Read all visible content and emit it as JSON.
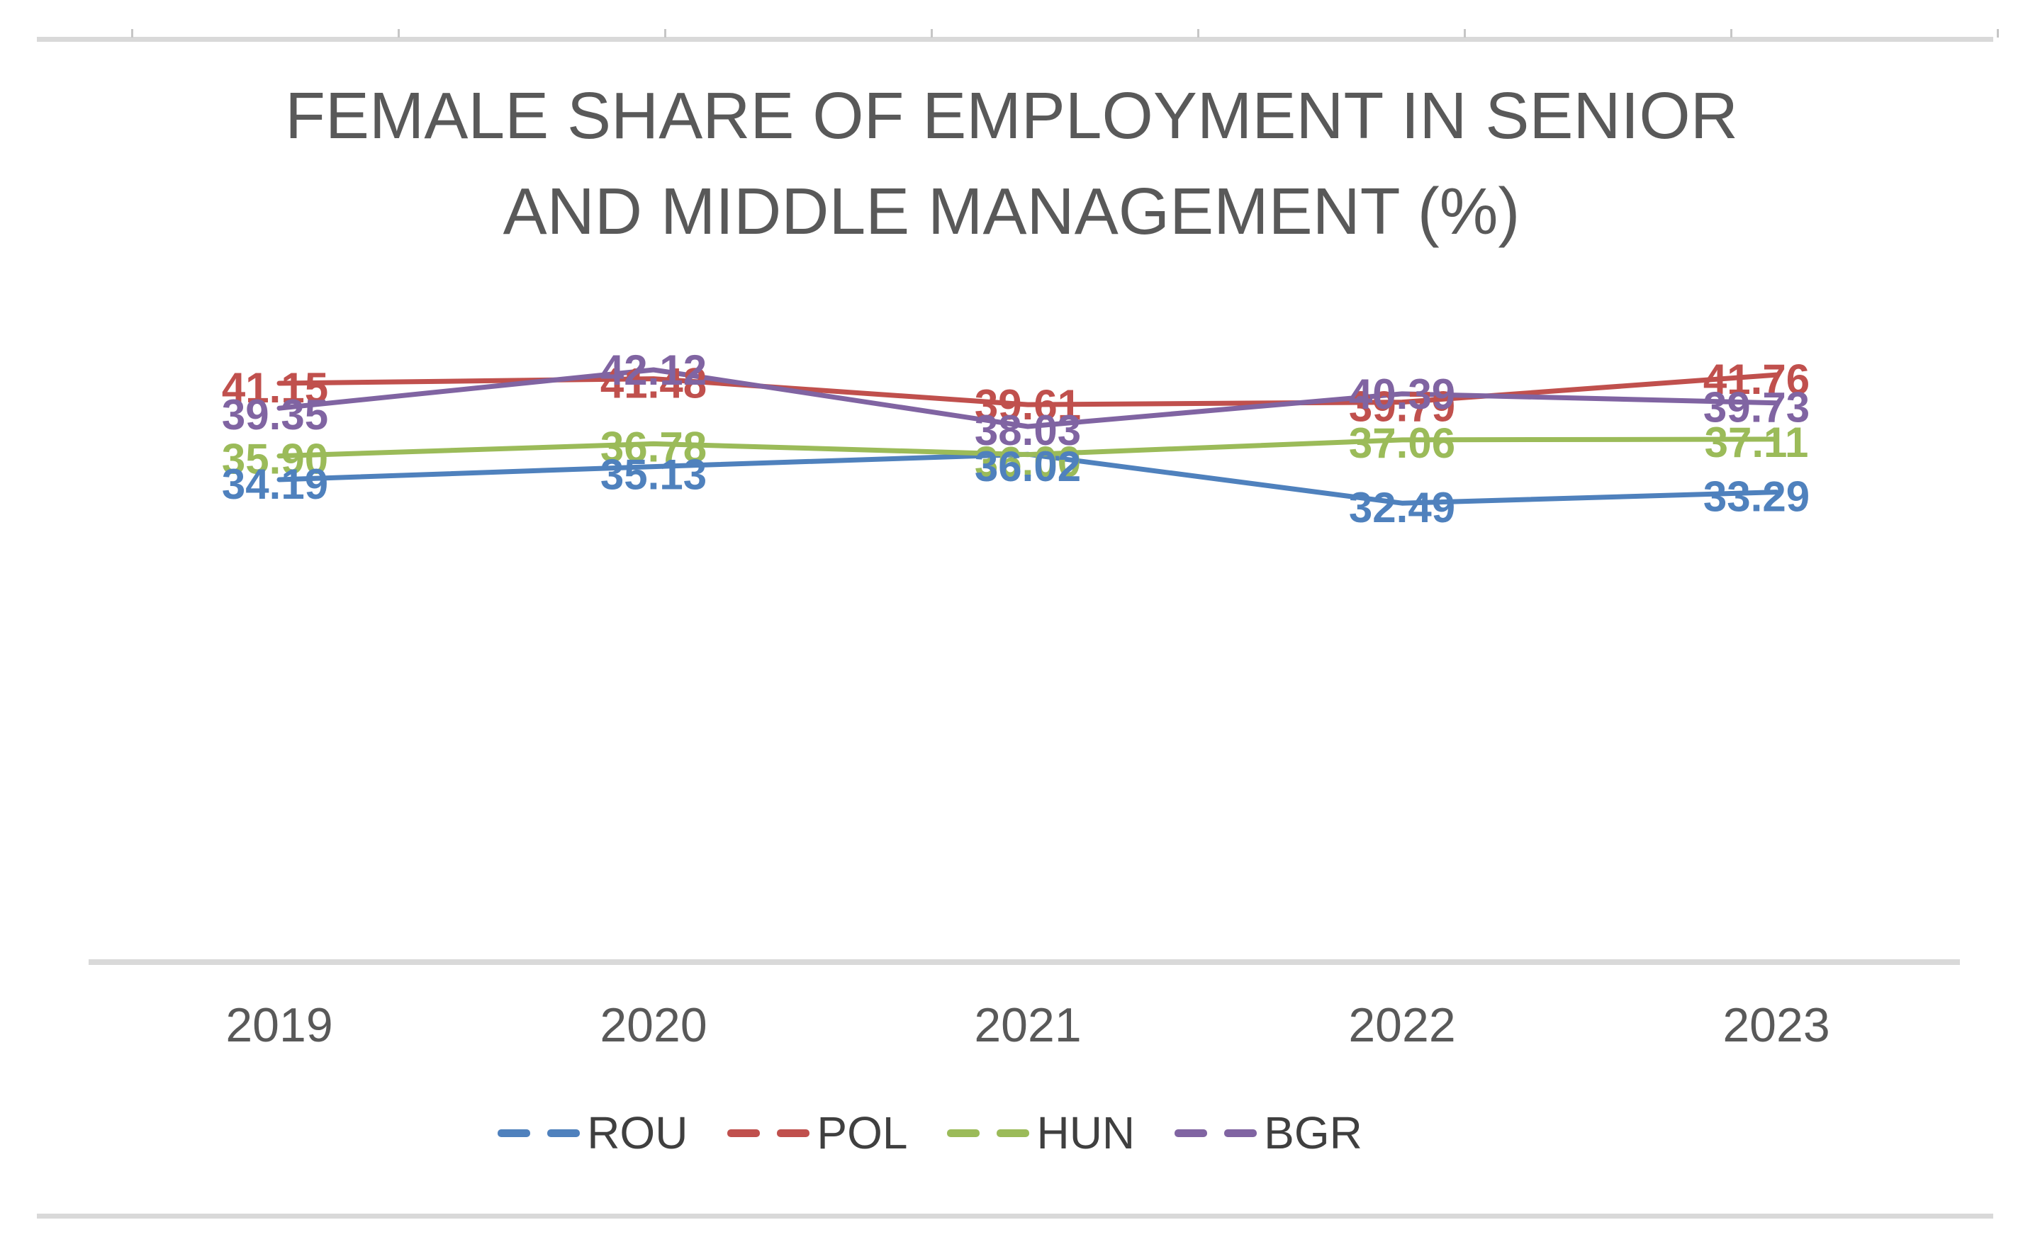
{
  "chart_data": {
    "type": "line",
    "title": "FEMALE SHARE OF EMPLOYMENT IN SENIOR AND MIDDLE MANAGEMENT (%)",
    "categories": [
      "2019",
      "2020",
      "2021",
      "2022",
      "2023"
    ],
    "series": [
      {
        "name": "ROU",
        "color": "#4F81BD",
        "values": [
          34.19,
          35.13,
          36.02,
          32.49,
          33.29
        ],
        "label_dy": [
          6,
          11,
          17,
          6,
          6
        ]
      },
      {
        "name": "POL",
        "color": "#C0504D",
        "values": [
          41.15,
          41.48,
          39.61,
          39.79,
          41.76
        ],
        "label_dy": [
          6,
          6,
          0,
          6,
          6
        ]
      },
      {
        "name": "HUN",
        "color": "#9BBB59",
        "values": [
          35.9,
          36.78,
          36.0,
          37.06,
          37.11
        ],
        "label_dy": [
          4,
          4,
          10,
          4,
          4
        ]
      },
      {
        "name": "BGR",
        "color": "#8064A2",
        "values": [
          39.35,
          42.12,
          38.03,
          40.39,
          39.73
        ],
        "label_dy": [
          9,
          0,
          5,
          0,
          6
        ]
      }
    ],
    "data_labels": true,
    "label_decimals": 2,
    "legend_position": "bottom",
    "legend_entries": [
      "ROU",
      "POL",
      "HUN",
      "BGR"
    ],
    "label_draw_order": [
      "POL",
      "HUN",
      "ROU",
      "BGR"
    ],
    "gridlines": false,
    "y_axis_visible": false,
    "approx_value_range": [
      30,
      45
    ],
    "x_axis_line": true
  },
  "styles": {
    "background": "#FFFFFF",
    "title_color": "#595959",
    "x_axis_label_color": "#595959",
    "legend_text_color": "#3F3F3F",
    "axis_line_color": "#D9D9D9",
    "ruler_bar_color": "#D9D9D9",
    "ruler_tick_color": "#C6C6C6"
  },
  "decor": {
    "top_ruler_tick_count": 8
  }
}
